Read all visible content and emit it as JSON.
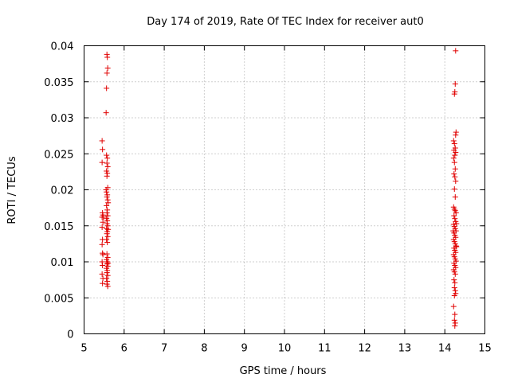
{
  "chart_data": {
    "type": "scatter",
    "title": "Day 174 of 2019, Rate Of TEC Index for receiver aut0",
    "xlabel": "GPS time / hours",
    "ylabel": "ROTI / TECUs",
    "xlim": [
      5,
      15
    ],
    "ylim": [
      0,
      0.04
    ],
    "x_ticks": [
      5,
      6,
      7,
      8,
      9,
      10,
      11,
      12,
      13,
      14,
      15
    ],
    "y_ticks": [
      0,
      0.005,
      0.01,
      0.015,
      0.02,
      0.025,
      0.03,
      0.035,
      0.04
    ],
    "x_tick_labels": [
      "5",
      "6",
      "7",
      "8",
      "9",
      "10",
      "11",
      "12",
      "13",
      "14",
      "15"
    ],
    "y_tick_labels": [
      "0",
      "0.005",
      "0.01",
      "0.015",
      "0.02",
      "0.025",
      "0.03",
      "0.035",
      "0.04"
    ],
    "grid": true,
    "marker": "+",
    "marker_color": "#e00000",
    "series": [
      {
        "points": [
          [
            5.45,
            0.0268
          ],
          [
            5.46,
            0.0256
          ],
          [
            5.45,
            0.0238
          ],
          [
            5.47,
            0.0165
          ],
          [
            5.45,
            0.0162
          ],
          [
            5.46,
            0.0168
          ],
          [
            5.47,
            0.0155
          ],
          [
            5.45,
            0.0148
          ],
          [
            5.46,
            0.0131
          ],
          [
            5.45,
            0.0124
          ],
          [
            5.46,
            0.0112
          ],
          [
            5.47,
            0.011
          ],
          [
            5.45,
            0.01
          ],
          [
            5.46,
            0.0095
          ],
          [
            5.45,
            0.0083
          ],
          [
            5.47,
            0.0077
          ],
          [
            5.46,
            0.007
          ],
          [
            5.48,
            0.0162
          ],
          [
            5.57,
            0.0388
          ],
          [
            5.58,
            0.0384
          ],
          [
            5.59,
            0.0369
          ],
          [
            5.57,
            0.0362
          ],
          [
            5.56,
            0.0341
          ],
          [
            5.55,
            0.0307
          ],
          [
            5.56,
            0.0248
          ],
          [
            5.58,
            0.0244
          ],
          [
            5.57,
            0.0237
          ],
          [
            5.59,
            0.0232
          ],
          [
            5.56,
            0.0226
          ],
          [
            5.58,
            0.0223
          ],
          [
            5.57,
            0.0219
          ],
          [
            5.59,
            0.0203
          ],
          [
            5.56,
            0.0197
          ],
          [
            5.58,
            0.0193
          ],
          [
            5.57,
            0.019
          ],
          [
            5.59,
            0.0186
          ],
          [
            5.56,
            0.0178
          ],
          [
            5.58,
            0.0172
          ],
          [
            5.57,
            0.0168
          ],
          [
            5.59,
            0.0164
          ],
          [
            5.56,
            0.016
          ],
          [
            5.58,
            0.0157
          ],
          [
            5.57,
            0.0153
          ],
          [
            5.59,
            0.015
          ],
          [
            5.56,
            0.0146
          ],
          [
            5.58,
            0.0142
          ],
          [
            5.57,
            0.0139
          ],
          [
            5.59,
            0.0135
          ],
          [
            5.56,
            0.0131
          ],
          [
            5.58,
            0.0127
          ],
          [
            5.57,
            0.0111
          ],
          [
            5.59,
            0.0106
          ],
          [
            5.56,
            0.0103
          ],
          [
            5.58,
            0.01
          ],
          [
            5.57,
            0.0097
          ],
          [
            5.59,
            0.0094
          ],
          [
            5.56,
            0.0091
          ],
          [
            5.58,
            0.0088
          ],
          [
            5.57,
            0.0085
          ],
          [
            5.59,
            0.0081
          ],
          [
            5.56,
            0.0077
          ],
          [
            5.58,
            0.0073
          ],
          [
            5.57,
            0.0069
          ],
          [
            5.59,
            0.0066
          ],
          [
            5.6,
            0.0098
          ],
          [
            5.6,
            0.0145
          ],
          [
            5.6,
            0.0182
          ],
          [
            5.55,
            0.02
          ],
          [
            14.27,
            0.0393
          ],
          [
            14.26,
            0.0347
          ],
          [
            14.25,
            0.0336
          ],
          [
            14.24,
            0.0333
          ],
          [
            14.28,
            0.028
          ],
          [
            14.27,
            0.0276
          ],
          [
            14.22,
            0.0268
          ],
          [
            14.24,
            0.0264
          ],
          [
            14.26,
            0.0258
          ],
          [
            14.23,
            0.0255
          ],
          [
            14.27,
            0.0252
          ],
          [
            14.25,
            0.0248
          ],
          [
            14.22,
            0.0244
          ],
          [
            14.24,
            0.0238
          ],
          [
            14.26,
            0.0229
          ],
          [
            14.23,
            0.0222
          ],
          [
            14.25,
            0.0218
          ],
          [
            14.27,
            0.0212
          ],
          [
            14.24,
            0.0201
          ],
          [
            14.26,
            0.019
          ],
          [
            14.22,
            0.0176
          ],
          [
            14.24,
            0.0173
          ],
          [
            14.26,
            0.0171
          ],
          [
            14.28,
            0.0168
          ],
          [
            14.23,
            0.0164
          ],
          [
            14.25,
            0.016
          ],
          [
            14.27,
            0.0156
          ],
          [
            14.22,
            0.0152
          ],
          [
            14.24,
            0.0149
          ],
          [
            14.26,
            0.0146
          ],
          [
            14.28,
            0.0143
          ],
          [
            14.23,
            0.014
          ],
          [
            14.25,
            0.0137
          ],
          [
            14.27,
            0.0134
          ],
          [
            14.22,
            0.0131
          ],
          [
            14.24,
            0.0128
          ],
          [
            14.26,
            0.0125
          ],
          [
            14.28,
            0.0122
          ],
          [
            14.23,
            0.0119
          ],
          [
            14.25,
            0.0116
          ],
          [
            14.27,
            0.0113
          ],
          [
            14.22,
            0.011
          ],
          [
            14.24,
            0.0107
          ],
          [
            14.26,
            0.0104
          ],
          [
            14.28,
            0.0101
          ],
          [
            14.23,
            0.0098
          ],
          [
            14.25,
            0.0095
          ],
          [
            14.27,
            0.0092
          ],
          [
            14.22,
            0.0089
          ],
          [
            14.24,
            0.0086
          ],
          [
            14.26,
            0.0083
          ],
          [
            14.23,
            0.0075
          ],
          [
            14.25,
            0.0071
          ],
          [
            14.24,
            0.0064
          ],
          [
            14.26,
            0.006
          ],
          [
            14.27,
            0.0056
          ],
          [
            14.24,
            0.0053
          ],
          [
            14.22,
            0.0038
          ],
          [
            14.25,
            0.0027
          ],
          [
            14.24,
            0.0019
          ],
          [
            14.26,
            0.0015
          ],
          [
            14.25,
            0.0011
          ],
          [
            14.29,
            0.0153
          ],
          [
            14.29,
            0.0121
          ],
          [
            14.21,
            0.0143
          ]
        ]
      }
    ]
  }
}
